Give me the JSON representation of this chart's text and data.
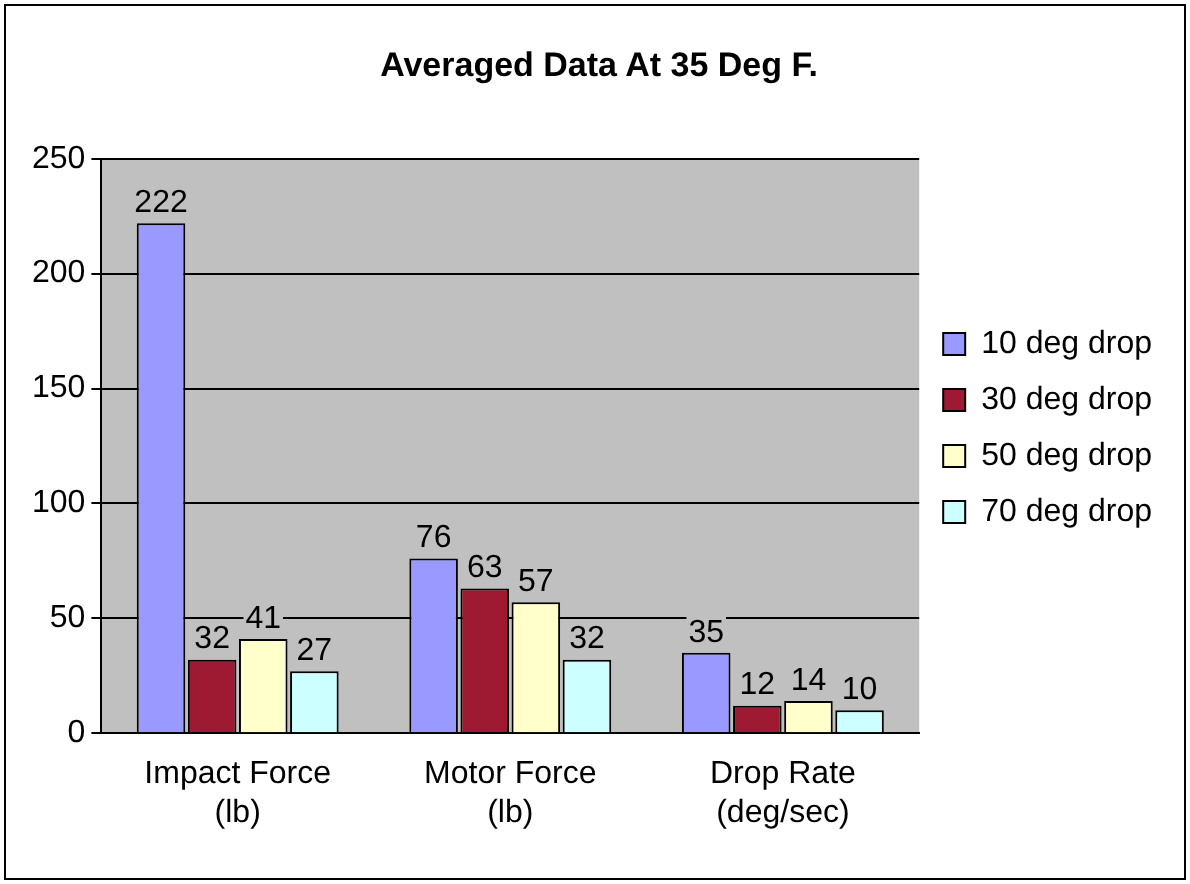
{
  "chart_data": {
    "type": "bar",
    "title": "Averaged Data At 35 Deg F.",
    "categories": [
      "Impact Force (lb)",
      "Motor Force (lb)",
      "Drop Rate (deg/sec)"
    ],
    "series": [
      {
        "name": "10 deg drop",
        "color": "#9999ff",
        "values": [
          222,
          76,
          35
        ]
      },
      {
        "name": "30 deg drop",
        "color": "#9e1a32",
        "values": [
          32,
          63,
          12
        ]
      },
      {
        "name": "50 deg drop",
        "color": "#ffffcc",
        "values": [
          41,
          57,
          14
        ]
      },
      {
        "name": "70 deg drop",
        "color": "#ccffff",
        "values": [
          27,
          32,
          10
        ]
      }
    ],
    "ylim": [
      0,
      250
    ],
    "yticks": [
      0,
      50,
      100,
      150,
      200,
      250
    ],
    "grid": "y",
    "legend": "right",
    "data_labels": true
  }
}
